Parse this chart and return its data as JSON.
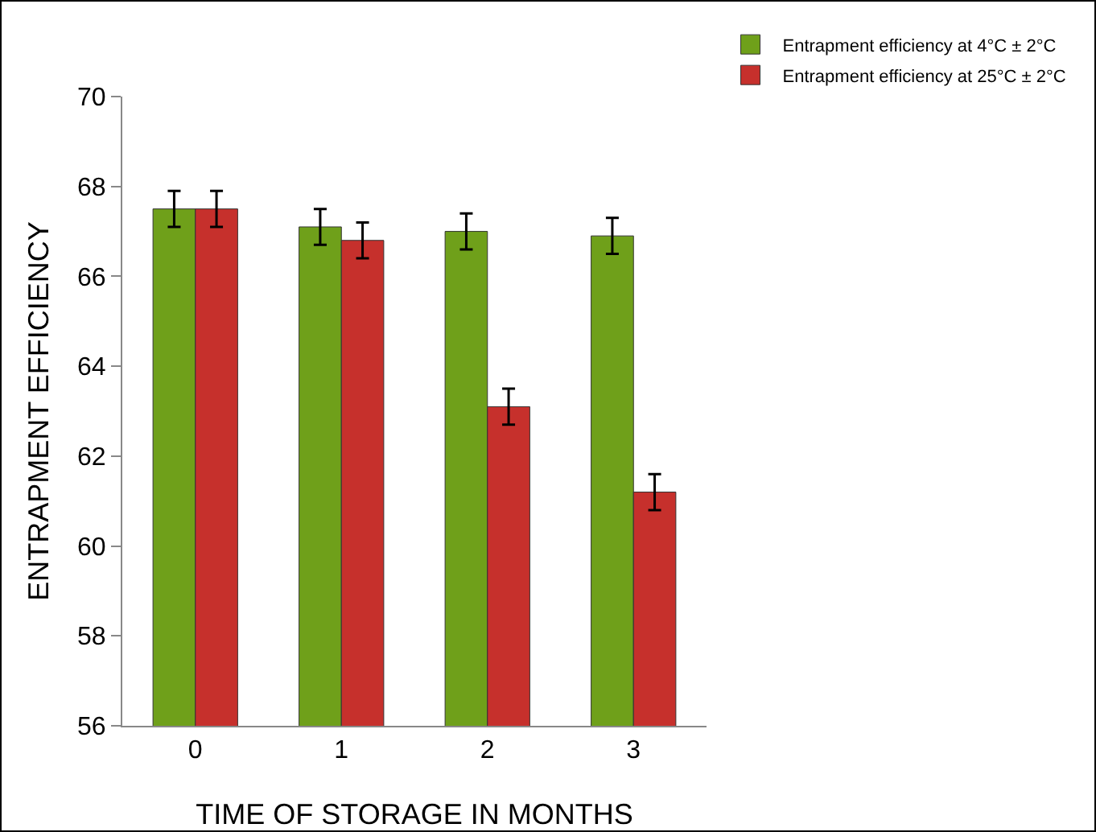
{
  "chart_data": {
    "type": "bar",
    "xlabel": "TIME OF STORAGE IN MONTHS",
    "ylabel": "ENTRAPMENT EFFICIENCY",
    "categories": [
      "0",
      "1",
      "2",
      "3"
    ],
    "series": [
      {
        "name": "Entrapment efficiency at 4°C ± 2°C",
        "color": "#6fa01a",
        "values": [
          67.5,
          67.1,
          67.0,
          66.9
        ],
        "errors": [
          0.4,
          0.4,
          0.4,
          0.4
        ]
      },
      {
        "name": "Entrapment efficiency at 25°C ± 2°C",
        "color": "#c6302c",
        "values": [
          67.5,
          66.8,
          63.1,
          61.2
        ],
        "errors": [
          0.4,
          0.4,
          0.4,
          0.4
        ]
      }
    ],
    "ylim": [
      56,
      70
    ],
    "yticks": [
      56,
      58,
      60,
      62,
      64,
      66,
      68,
      70
    ],
    "grid": false,
    "legend": "top right"
  }
}
